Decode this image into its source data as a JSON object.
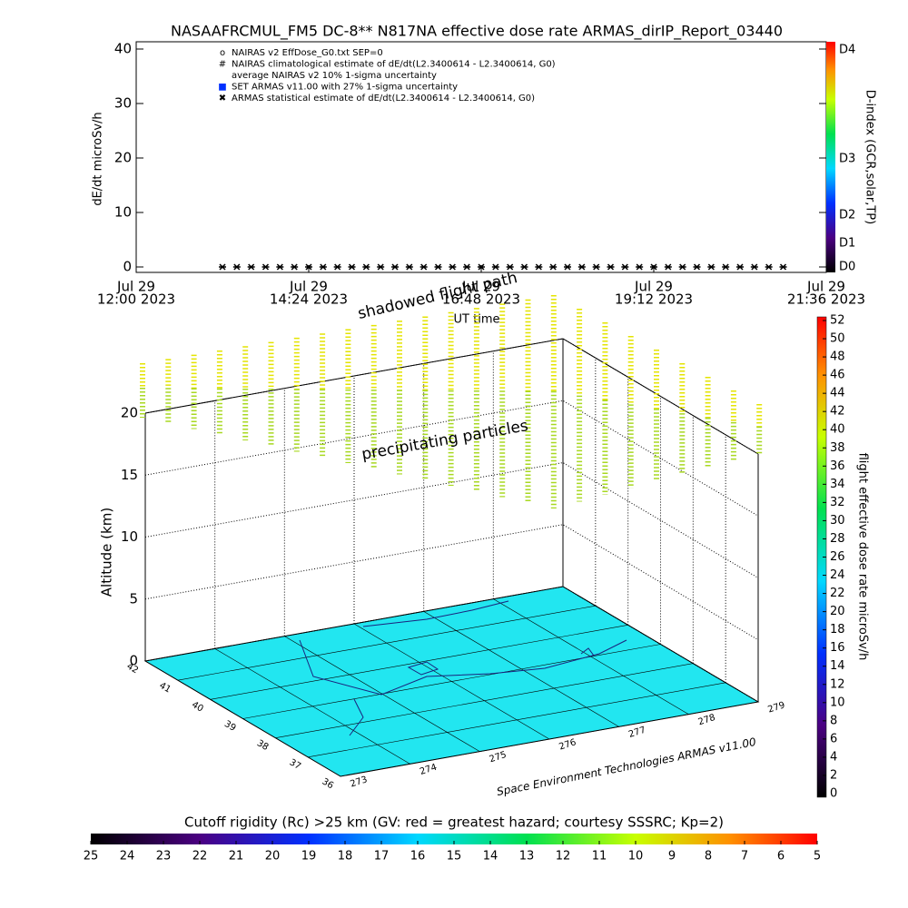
{
  "chart_data": {
    "type": "line",
    "title": "NASAAFRCMUL_FM5 DC-8** N817NA effective dose rate ARMAS_dirIP_Report_03440",
    "ylabel": "dE/dt microSv/h",
    "xlabel": "UT time",
    "xlim": [
      "2023-07-29T12:00",
      "2023-07-29T21:36"
    ],
    "xticks": [
      {
        "value": "2023-07-29T12:00",
        "label": [
          "Jul 29",
          "12:00 2023"
        ]
      },
      {
        "value": "2023-07-29T14:24",
        "label": [
          "Jul 29",
          "14:24 2023"
        ]
      },
      {
        "value": "2023-07-29T16:48",
        "label": [
          "Jul 29",
          "16:48 2023"
        ]
      },
      {
        "value": "2023-07-29T19:12",
        "label": [
          "Jul 29",
          "19:12 2023"
        ]
      },
      {
        "value": "2023-07-29T21:36",
        "label": [
          "Jul 29",
          "21:36 2023"
        ]
      }
    ],
    "ylim": [
      0,
      40
    ],
    "yticks": [
      0,
      10,
      20,
      30,
      40
    ],
    "legend_notes": [
      "NAIRAS v2 EffDose_G0.txt SEP=0",
      "NAIRAS climatological estimate of dE/dt(L2.3400614 - L2.3400614, G0)",
      "average NAIRAS v2 10% 1-sigma uncertainty",
      "SET ARMAS v11.00 with 27% 1-sigma uncertainty"
    ],
    "x": [
      "2023-07-29T13:12",
      "2023-07-29T13:24",
      "2023-07-29T13:36",
      "2023-07-29T13:48",
      "2023-07-29T14:00",
      "2023-07-29T14:12",
      "2023-07-29T14:24",
      "2023-07-29T14:36",
      "2023-07-29T14:48",
      "2023-07-29T15:00",
      "2023-07-29T15:12",
      "2023-07-29T15:24",
      "2023-07-29T15:36",
      "2023-07-29T15:48",
      "2023-07-29T16:00",
      "2023-07-29T16:12",
      "2023-07-29T16:24",
      "2023-07-29T16:36",
      "2023-07-29T16:48",
      "2023-07-29T17:00",
      "2023-07-29T17:12",
      "2023-07-29T17:24",
      "2023-07-29T17:36",
      "2023-07-29T17:48",
      "2023-07-29T18:00",
      "2023-07-29T18:12",
      "2023-07-29T18:24",
      "2023-07-29T18:36",
      "2023-07-29T18:48",
      "2023-07-29T19:00",
      "2023-07-29T19:12",
      "2023-07-29T19:24",
      "2023-07-29T19:36",
      "2023-07-29T19:48",
      "2023-07-29T20:00",
      "2023-07-29T20:12",
      "2023-07-29T20:24",
      "2023-07-29T20:36",
      "2023-07-29T20:48",
      "2023-07-29T21:00"
    ],
    "series": [
      {
        "name": "ARMAS statistical estimate of dE/dt(L2.3400614 - L2.3400614, G0)",
        "color": "#000000",
        "values": [
          0,
          0,
          0,
          0,
          0,
          0,
          0,
          0,
          0,
          0,
          0,
          0,
          0,
          0,
          0,
          0,
          0,
          0,
          0,
          0,
          0,
          0,
          0,
          0,
          0,
          0,
          0,
          0,
          0,
          0,
          0,
          0,
          0,
          0,
          0,
          0,
          0,
          0,
          0,
          0
        ]
      }
    ]
  },
  "dindex_colorbar": {
    "label": "D-index (GCR,solar,TP)",
    "ticks": [
      "D4",
      "D3",
      "D2",
      "D1",
      "D0"
    ]
  },
  "plot3d": {
    "zlabel": "Altitude (km)",
    "zlim": [
      0,
      20
    ],
    "zticks": [
      0,
      5,
      10,
      15,
      20
    ],
    "lat_range": [
      42,
      36
    ],
    "lat_ticks": [
      42,
      41,
      40,
      39,
      38,
      37,
      36
    ],
    "lon_range": [
      273,
      279
    ],
    "lon_ticks": [
      273,
      274,
      275,
      276,
      277,
      278,
      279
    ],
    "annotations": [
      "shadowed flight path",
      "precipitating particles"
    ],
    "credit": "Space Environment Technologies ARMAS v11.00"
  },
  "dose_colorbar": {
    "label": "flight effective dose rate microSv/h",
    "range": [
      0,
      52
    ],
    "ticks": [
      0,
      2,
      4,
      6,
      8,
      10,
      12,
      14,
      16,
      18,
      20,
      22,
      24,
      26,
      28,
      30,
      32,
      34,
      36,
      38,
      40,
      42,
      44,
      46,
      48,
      50,
      52
    ]
  },
  "rigidity_colorbar": {
    "title": "Cutoff rigidity (Rc) >25 km (GV: red = greatest hazard; courtesy SSSRC; Kp=2)",
    "range": [
      25,
      5
    ],
    "ticks": [
      25,
      24,
      23,
      22,
      21,
      20,
      19,
      18,
      17,
      16,
      15,
      14,
      13,
      12,
      11,
      10,
      9,
      8,
      7,
      6,
      5
    ]
  }
}
